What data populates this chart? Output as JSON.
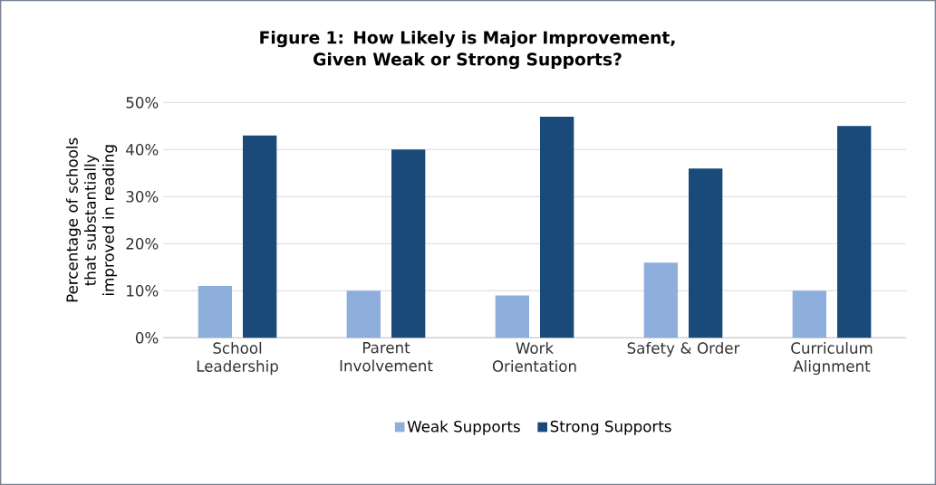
{
  "chart_data": {
    "type": "bar",
    "title": "Figure 1: How Likely is Major Improvement, Given Weak or Strong Supports?",
    "ylabel": "Percentage of schools that substantially improved in reading",
    "categories": [
      "School Leadership",
      "Parent Involvement",
      "Work Orientation",
      "Safety & Order",
      "Curriculum Alignment"
    ],
    "series": [
      {
        "name": "Weak Supports",
        "color": "#8eaedc",
        "values": [
          11,
          10,
          9,
          16,
          10
        ]
      },
      {
        "name": "Strong Supports",
        "color": "#1a4a7a",
        "values": [
          43,
          40,
          47,
          36,
          45
        ]
      }
    ],
    "ylim": [
      0,
      50
    ],
    "yticks": [
      {
        "value": 0,
        "label": "0%"
      },
      {
        "value": 10,
        "label": "10%"
      },
      {
        "value": 20,
        "label": "20%"
      },
      {
        "value": 30,
        "label": "30%"
      },
      {
        "value": 40,
        "label": "40%"
      },
      {
        "value": 50,
        "label": "50%"
      }
    ],
    "grid": "y",
    "legend": "bottom"
  }
}
